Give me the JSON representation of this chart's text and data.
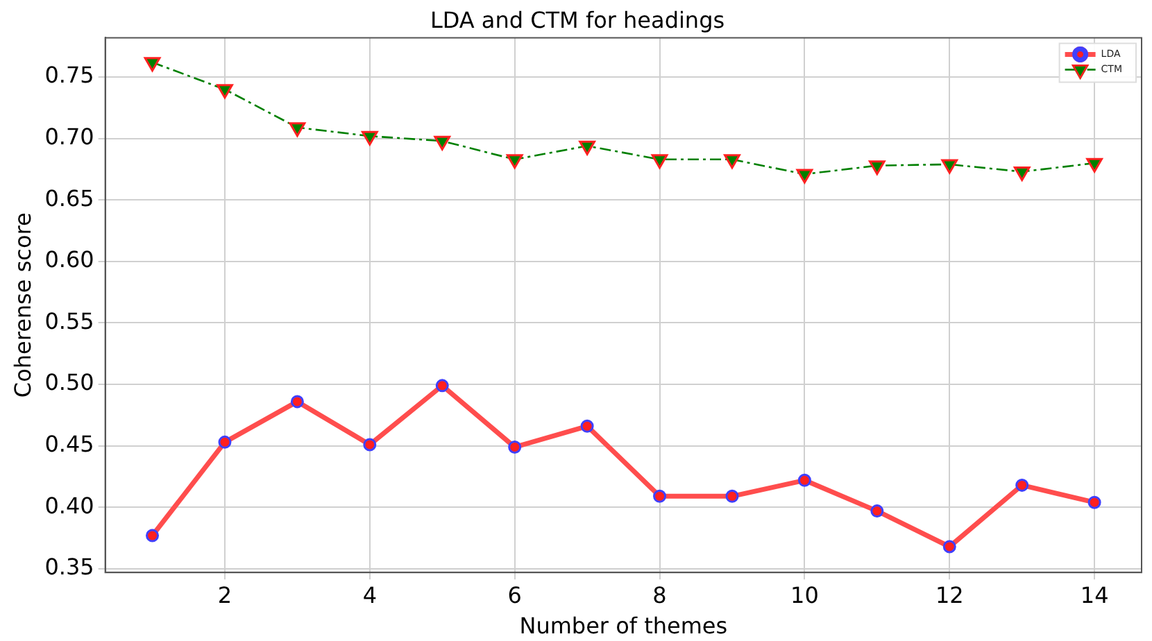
{
  "chart_data": {
    "type": "line",
    "title": "LDA and CTM for headings",
    "xlabel": "Number of themes",
    "ylabel": "Coherense score",
    "x": [
      1,
      2,
      3,
      4,
      5,
      6,
      7,
      8,
      9,
      10,
      11,
      12,
      13,
      14
    ],
    "series": [
      {
        "name": "LDA",
        "color": "#ff4d4d",
        "marker": "circle",
        "line_style": "solid",
        "values": [
          0.377,
          0.453,
          0.486,
          0.451,
          0.499,
          0.449,
          0.466,
          0.409,
          0.409,
          0.422,
          0.397,
          0.368,
          0.418,
          0.404
        ]
      },
      {
        "name": "CTM",
        "color": "#008000",
        "marker": "triangle",
        "line_style": "dashdot",
        "values": [
          0.762,
          0.74,
          0.709,
          0.702,
          0.698,
          0.683,
          0.694,
          0.683,
          0.683,
          0.671,
          0.678,
          0.679,
          0.673,
          0.68
        ]
      }
    ],
    "xlim": [
      0.35,
      14.65
    ],
    "xticks": [
      2,
      4,
      6,
      8,
      10,
      12,
      14
    ],
    "ylim": [
      0.347,
      0.782
    ],
    "yticks": [
      {
        "value": 0.35,
        "label": "0.35"
      },
      {
        "value": 0.4,
        "label": "0.40"
      },
      {
        "value": 0.45,
        "label": "0.45"
      },
      {
        "value": 0.5,
        "label": "0.50"
      },
      {
        "value": 0.55,
        "label": "0.55"
      },
      {
        "value": 0.6,
        "label": "0.60"
      },
      {
        "value": 0.65,
        "label": "0.65"
      },
      {
        "value": 0.7,
        "label": "0.70"
      },
      {
        "value": 0.75,
        "label": "0.75"
      }
    ],
    "grid": true,
    "legend": "top right"
  }
}
